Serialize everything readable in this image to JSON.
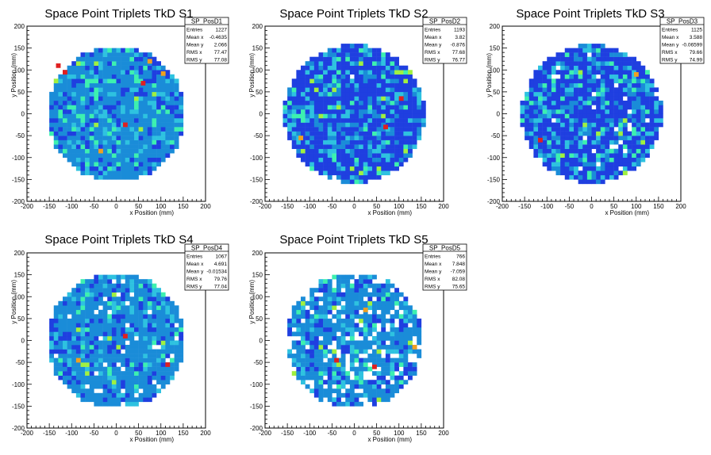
{
  "colors": {
    "background": "#ffffff",
    "frame": "#000000",
    "palette": [
      "#1f3fe0",
      "#1a8cd8",
      "#2ec2e0",
      "#3df0b0",
      "#a0f040",
      "#f0a020",
      "#e02020"
    ]
  },
  "chart_data": [
    {
      "type": "heatmap",
      "title": "Space Point Triplets TkD S1",
      "xlabel": "x Position (mm)",
      "ylabel": "y Position (mm)",
      "xlim": [
        -200,
        200
      ],
      "ylim": [
        -200,
        200
      ],
      "xticks": [
        "-200",
        "-150",
        "-100",
        "-50",
        "0",
        "50",
        "100",
        "150",
        "200"
      ],
      "yticks": [
        "-200",
        "-150",
        "-100",
        "-50",
        "0",
        "50",
        "100",
        "150",
        "200"
      ],
      "bin_width_mm": 10,
      "occupied_radius_mm": 155,
      "dominant_color": "#1a8cd8",
      "hot_bins": [
        [
          -115,
          95
        ],
        [
          105,
          92
        ],
        [
          20,
          -25
        ],
        [
          -35,
          -85
        ],
        [
          -130,
          110
        ],
        [
          75,
          120
        ],
        [
          60,
          70
        ]
      ],
      "grid": false,
      "legend": "none",
      "stats": {
        "name": "SP_PosD1",
        "rows": [
          {
            "label": "Entries",
            "value": "1227"
          },
          {
            "label": "Mean x",
            "value": "-0.4635"
          },
          {
            "label": "Mean y",
            "value": "2.066"
          },
          {
            "label": "RMS x",
            "value": "77.47"
          },
          {
            "label": "RMS y",
            "value": "77.08"
          }
        ]
      }
    },
    {
      "type": "heatmap",
      "title": "Space Point Triplets TkD S2",
      "xlabel": "x Position (mm)",
      "ylabel": "y Position (mm)",
      "xlim": [
        -200,
        200
      ],
      "ylim": [
        -200,
        200
      ],
      "xticks": [
        "-200",
        "-150",
        "-100",
        "-50",
        "0",
        "50",
        "100",
        "150",
        "200"
      ],
      "yticks": [
        "-200",
        "-150",
        "-100",
        "-50",
        "0",
        "50",
        "100",
        "150",
        "200"
      ],
      "bin_width_mm": 10,
      "occupied_radius_mm": 158,
      "dominant_color": "#1f3fe0",
      "hot_bins": [
        [
          70,
          -30
        ],
        [
          -120,
          -55
        ],
        [
          105,
          35
        ]
      ],
      "grid": false,
      "legend": "none",
      "stats": {
        "name": "SP_PosD2",
        "rows": [
          {
            "label": "Entries",
            "value": "1193"
          },
          {
            "label": "Mean x",
            "value": "3.82"
          },
          {
            "label": "Mean y",
            "value": "-0.876"
          },
          {
            "label": "RMS x",
            "value": "77.68"
          },
          {
            "label": "RMS y",
            "value": "76.77"
          }
        ]
      }
    },
    {
      "type": "heatmap",
      "title": "Space Point Triplets TkD S3",
      "xlabel": "x Position (mm)",
      "ylabel": "y Position (mm)",
      "xlim": [
        -200,
        200
      ],
      "ylim": [
        -200,
        200
      ],
      "xticks": [
        "-200",
        "-150",
        "-100",
        "-50",
        "0",
        "50",
        "100",
        "150",
        "200"
      ],
      "yticks": [
        "-200",
        "-150",
        "-100",
        "-50",
        "0",
        "50",
        "100",
        "150",
        "200"
      ],
      "bin_width_mm": 10,
      "occupied_radius_mm": 158,
      "dominant_color": "#1f3fe0",
      "hot_bins": [
        [
          -115,
          -60
        ],
        [
          100,
          90
        ]
      ],
      "grid": false,
      "legend": "none",
      "stats": {
        "name": "SP_PosD3",
        "rows": [
          {
            "label": "Entries",
            "value": "1125"
          },
          {
            "label": "Mean x",
            "value": "3.588"
          },
          {
            "label": "Mean y",
            "value": "-0.06599"
          },
          {
            "label": "RMS x",
            "value": "79.66"
          },
          {
            "label": "RMS y",
            "value": "74.99"
          }
        ]
      }
    },
    {
      "type": "heatmap",
      "title": "Space Point Triplets TkD S4",
      "xlabel": "x Position (mm)",
      "ylabel": "y Position (mm)",
      "xlim": [
        -200,
        200
      ],
      "ylim": [
        -200,
        200
      ],
      "xticks": [
        "-200",
        "-150",
        "-100",
        "-50",
        "0",
        "50",
        "100",
        "150",
        "200"
      ],
      "yticks": [
        "-200",
        "-150",
        "-100",
        "-50",
        "0",
        "50",
        "100",
        "150",
        "200"
      ],
      "bin_width_mm": 10,
      "occupied_radius_mm": 155,
      "dominant_color": "#1a8cd8",
      "hot_bins": [
        [
          20,
          10
        ],
        [
          -85,
          -45
        ],
        [
          115,
          -55
        ]
      ],
      "grid": false,
      "legend": "none",
      "stats": {
        "name": "SP_PosD4",
        "rows": [
          {
            "label": "Entries",
            "value": "1067"
          },
          {
            "label": "Mean x",
            "value": "4.691"
          },
          {
            "label": "Mean y",
            "value": "-0.01534"
          },
          {
            "label": "RMS x",
            "value": "79.76"
          },
          {
            "label": "RMS y",
            "value": "77.04"
          }
        ]
      }
    },
    {
      "type": "heatmap",
      "title": "Space Point Triplets TkD S5",
      "xlabel": "x Position (mm)",
      "ylabel": "y Position (mm)",
      "xlim": [
        -200,
        200
      ],
      "ylim": [
        -200,
        200
      ],
      "xticks": [
        "-200",
        "-150",
        "-100",
        "-50",
        "0",
        "50",
        "100",
        "150",
        "200"
      ],
      "yticks": [
        "-200",
        "-150",
        "-100",
        "-50",
        "0",
        "50",
        "100",
        "150",
        "200"
      ],
      "bin_width_mm": 10,
      "occupied_radius_mm": 155,
      "dominant_color": "#1a8cd8",
      "hot_bins": [
        [
          45,
          -60
        ],
        [
          135,
          -15
        ],
        [
          -40,
          -45
        ],
        [
          25,
          70
        ]
      ],
      "grid": false,
      "legend": "none",
      "stats": {
        "name": "SP_PosD5",
        "rows": [
          {
            "label": "Entries",
            "value": "766"
          },
          {
            "label": "Mean x",
            "value": "7.848"
          },
          {
            "label": "Mean y",
            "value": "-7.059"
          },
          {
            "label": "RMS x",
            "value": "82.08"
          },
          {
            "label": "RMS y",
            "value": "75.65"
          }
        ]
      }
    }
  ]
}
